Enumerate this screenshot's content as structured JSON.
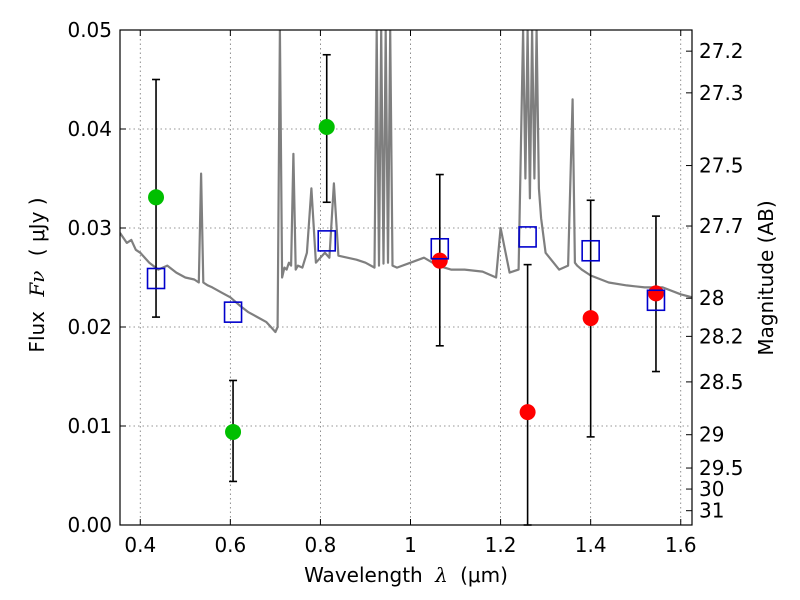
{
  "chart_data": {
    "type": "scatter",
    "xlabel_text": "Wavelength",
    "xlabel_symbol": "λ",
    "xlabel_unit": "(μm)",
    "ylabel_text": "Flux",
    "ylabel_symbol": "Fν",
    "ylabel_unit": "( μJy )",
    "y2label": "Magnitude (AB)",
    "xlim": [
      0.355,
      1.625
    ],
    "ylim": [
      0.0,
      0.05
    ],
    "grid": true,
    "x_ticks": [
      {
        "value": 0.4,
        "label": "0.4"
      },
      {
        "value": 0.6,
        "label": "0.6"
      },
      {
        "value": 0.8,
        "label": "0.8"
      },
      {
        "value": 1.0,
        "label": "1"
      },
      {
        "value": 1.2,
        "label": "1.2"
      },
      {
        "value": 1.4,
        "label": "1.4"
      },
      {
        "value": 1.6,
        "label": "1.6"
      }
    ],
    "y_ticks": [
      {
        "value": 0.0,
        "label": "0.00"
      },
      {
        "value": 0.01,
        "label": "0.01"
      },
      {
        "value": 0.02,
        "label": "0.02"
      },
      {
        "value": 0.03,
        "label": "0.03"
      },
      {
        "value": 0.04,
        "label": "0.04"
      },
      {
        "value": 0.05,
        "label": "0.05"
      }
    ],
    "y2_ticks": [
      {
        "mag": 27.2,
        "label": "27.2"
      },
      {
        "mag": 27.3,
        "label": "27.3"
      },
      {
        "mag": 27.5,
        "label": "27.5"
      },
      {
        "mag": 27.7,
        "label": "27.7"
      },
      {
        "mag": 28.0,
        "label": "28"
      },
      {
        "mag": 28.2,
        "label": "28.2"
      },
      {
        "mag": 28.5,
        "label": "28.5"
      },
      {
        "mag": 29.0,
        "label": "29"
      },
      {
        "mag": 29.5,
        "label": "29.5"
      },
      {
        "mag": 30.0,
        "label": "30"
      },
      {
        "mag": 31.0,
        "label": "31"
      }
    ],
    "colors": {
      "detection": "#00bf00",
      "nondetection": "#ff0000",
      "model_flux": "#0000cc",
      "template": "#7f7f7f",
      "errorbar": "#000000"
    },
    "series": [
      {
        "marker": "circle",
        "color": "#00bf00",
        "points": [
          {
            "x": 0.435,
            "y": 0.0331,
            "err_lo": 0.021,
            "err_hi": 0.045
          },
          {
            "x": 0.606,
            "y": 0.0094,
            "err_lo": 0.0044,
            "err_hi": 0.0146
          },
          {
            "x": 0.814,
            "y": 0.0402,
            "err_lo": 0.0326,
            "err_hi": 0.0475
          }
        ]
      },
      {
        "marker": "circle",
        "color": "#ff0000",
        "points": [
          {
            "x": 1.065,
            "y": 0.0267,
            "err_lo": 0.0181,
            "err_hi": 0.0354
          },
          {
            "x": 1.26,
            "y": 0.0114,
            "err_lo": 0.0,
            "err_hi": 0.0263
          },
          {
            "x": 1.4,
            "y": 0.0209,
            "err_lo": 0.0089,
            "err_hi": 0.0328
          },
          {
            "x": 1.545,
            "y": 0.0234,
            "err_lo": 0.0155,
            "err_hi": 0.0312
          }
        ]
      },
      {
        "marker": "open-square",
        "color": "#0000cc",
        "points": [
          {
            "x": 0.435,
            "y": 0.0249
          },
          {
            "x": 0.606,
            "y": 0.0215
          },
          {
            "x": 0.814,
            "y": 0.0287
          },
          {
            "x": 1.065,
            "y": 0.0279
          },
          {
            "x": 1.26,
            "y": 0.0291
          },
          {
            "x": 1.4,
            "y": 0.0277
          },
          {
            "x": 1.545,
            "y": 0.0227
          }
        ]
      },
      {
        "marker": "line",
        "color": "#7f7f7f",
        "x": [
          0.355,
          0.37,
          0.38,
          0.39,
          0.4,
          0.42,
          0.44,
          0.46,
          0.48,
          0.5,
          0.52,
          0.53,
          0.535,
          0.54,
          0.55,
          0.56,
          0.58,
          0.6,
          0.62,
          0.64,
          0.66,
          0.68,
          0.69,
          0.7,
          0.705,
          0.71,
          0.715,
          0.72,
          0.725,
          0.73,
          0.735,
          0.74,
          0.745,
          0.75,
          0.76,
          0.77,
          0.78,
          0.79,
          0.8,
          0.81,
          0.82,
          0.83,
          0.84,
          0.86,
          0.88,
          0.9,
          0.92,
          0.925,
          0.93,
          0.935,
          0.94,
          0.945,
          0.95,
          0.955,
          0.96,
          0.97,
          1.0,
          1.03,
          1.06,
          1.09,
          1.12,
          1.16,
          1.19,
          1.2,
          1.22,
          1.24,
          1.25,
          1.255,
          1.26,
          1.265,
          1.27,
          1.275,
          1.28,
          1.285,
          1.29,
          1.3,
          1.33,
          1.35,
          1.36,
          1.365,
          1.37,
          1.38,
          1.4,
          1.44,
          1.48,
          1.52,
          1.56,
          1.6,
          1.625
        ],
        "y": [
          0.0295,
          0.0285,
          0.0288,
          0.0278,
          0.0275,
          0.0265,
          0.0258,
          0.0262,
          0.0255,
          0.025,
          0.0248,
          0.0245,
          0.0355,
          0.0245,
          0.0242,
          0.024,
          0.0235,
          0.023,
          0.0222,
          0.0215,
          0.021,
          0.0205,
          0.02,
          0.0195,
          0.02,
          0.05,
          0.025,
          0.026,
          0.0258,
          0.0265,
          0.0262,
          0.0375,
          0.0258,
          0.0262,
          0.026,
          0.0275,
          0.034,
          0.0265,
          0.027,
          0.0275,
          0.027,
          0.0345,
          0.0272,
          0.027,
          0.0268,
          0.0265,
          0.026,
          0.05,
          0.0262,
          0.05,
          0.0264,
          0.05,
          0.0265,
          0.05,
          0.0262,
          0.026,
          0.0265,
          0.027,
          0.0262,
          0.0258,
          0.0258,
          0.0256,
          0.025,
          0.03,
          0.0255,
          0.0258,
          0.05,
          0.035,
          0.05,
          0.033,
          0.05,
          0.035,
          0.05,
          0.034,
          0.031,
          0.0275,
          0.0258,
          0.0262,
          0.043,
          0.0265,
          0.0262,
          0.0258,
          0.0252,
          0.0245,
          0.0242,
          0.024,
          0.024,
          0.0233,
          0.023
        ]
      }
    ]
  }
}
